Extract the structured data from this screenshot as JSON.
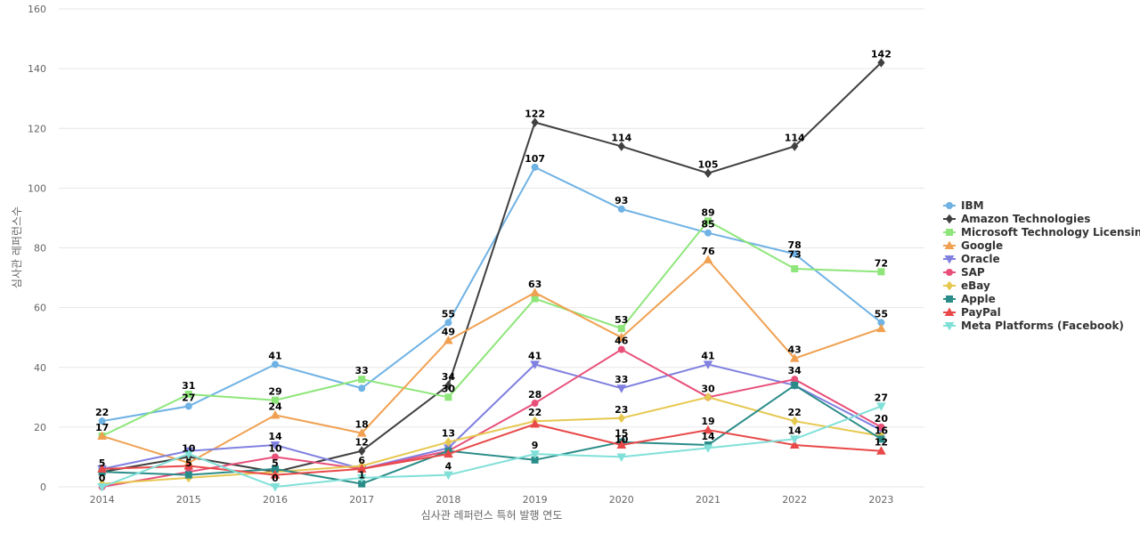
{
  "chart_data": {
    "type": "line",
    "title": "",
    "xlabel": "심사관 레퍼런스 특허 발행 연도",
    "ylabel": "심사관 레퍼런스수",
    "ylim": [
      0,
      160
    ],
    "yticks": [
      0,
      20,
      40,
      60,
      80,
      100,
      120,
      140,
      160
    ],
    "grid": true,
    "legend_position": "right",
    "data_labels": true,
    "categories": [
      "2014",
      "2015",
      "2016",
      "2017",
      "2018",
      "2019",
      "2020",
      "2021",
      "2022",
      "2023"
    ],
    "series": [
      {
        "name": "IBM",
        "color": "#6fb2e4",
        "marker": "circle",
        "values": [
          22,
          27,
          41,
          33,
          55,
          107,
          93,
          85,
          78,
          55
        ]
      },
      {
        "name": "Amazon Technologies",
        "color": "#404040",
        "marker": "diamond",
        "values": [
          5,
          10,
          5,
          12,
          34,
          122,
          114,
          105,
          114,
          142
        ]
      },
      {
        "name": "Microsoft Technology Licensing",
        "color": "#8ee67a",
        "marker": "square",
        "values": [
          17,
          31,
          29,
          36,
          30,
          63,
          53,
          89,
          73,
          72
        ]
      },
      {
        "name": "Google",
        "color": "#f0a050",
        "marker": "triangle",
        "values": [
          17,
          8,
          24,
          18,
          49,
          65,
          50,
          76,
          43,
          53
        ]
      },
      {
        "name": "Oracle",
        "color": "#8080e0",
        "marker": "triangle-down",
        "values": [
          6,
          12,
          14,
          6,
          13,
          41,
          33,
          41,
          34,
          19
        ]
      },
      {
        "name": "SAP",
        "color": "#e8507a",
        "marker": "circle",
        "values": [
          0,
          5,
          10,
          6,
          12,
          28,
          46,
          30,
          36,
          20
        ]
      },
      {
        "name": "eBay",
        "color": "#e6c850",
        "marker": "diamond",
        "values": [
          1,
          3,
          5,
          7,
          15,
          22,
          23,
          30,
          22,
          17
        ]
      },
      {
        "name": "Apple",
        "color": "#2a8c88",
        "marker": "square",
        "values": [
          5,
          4,
          6,
          1,
          12,
          9,
          15,
          14,
          34,
          16
        ]
      },
      {
        "name": "PayPal",
        "color": "#e84848",
        "marker": "triangle",
        "values": [
          6,
          7,
          4,
          6,
          11,
          21,
          14,
          19,
          14,
          12
        ]
      },
      {
        "name": "Meta Platforms (Facebook)",
        "color": "#80e0d8",
        "marker": "triangle-down",
        "values": [
          0,
          11,
          0,
          3,
          4,
          11,
          10,
          13,
          16,
          27
        ]
      }
    ],
    "labels": [
      {
        "text": "22",
        "x": "2014",
        "y": 22
      },
      {
        "text": "17",
        "x": "2014",
        "y": 17
      },
      {
        "text": "5",
        "x": "2014",
        "y": 5
      },
      {
        "text": "0",
        "x": "2014",
        "y": 0
      },
      {
        "text": "31",
        "x": "2015",
        "y": 31
      },
      {
        "text": "27",
        "x": "2015",
        "y": 27
      },
      {
        "text": "10",
        "x": "2015",
        "y": 10
      },
      {
        "text": "5",
        "x": "2015",
        "y": 5
      },
      {
        "text": "41",
        "x": "2016",
        "y": 41
      },
      {
        "text": "29",
        "x": "2016",
        "y": 29
      },
      {
        "text": "24",
        "x": "2016",
        "y": 24
      },
      {
        "text": "14",
        "x": "2016",
        "y": 14
      },
      {
        "text": "10",
        "x": "2016",
        "y": 10
      },
      {
        "text": "5",
        "x": "2016",
        "y": 5
      },
      {
        "text": "0",
        "x": "2016",
        "y": 0
      },
      {
        "text": "33",
        "x": "2017",
        "y": 36
      },
      {
        "text": "18",
        "x": "2017",
        "y": 18
      },
      {
        "text": "12",
        "x": "2017",
        "y": 12
      },
      {
        "text": "6",
        "x": "2017",
        "y": 6
      },
      {
        "text": "1",
        "x": "2017",
        "y": 1
      },
      {
        "text": "55",
        "x": "2018",
        "y": 55
      },
      {
        "text": "49",
        "x": "2018",
        "y": 49
      },
      {
        "text": "34",
        "x": "2018",
        "y": 34
      },
      {
        "text": "30",
        "x": "2018",
        "y": 30
      },
      {
        "text": "13",
        "x": "2018",
        "y": 15
      },
      {
        "text": "4",
        "x": "2018",
        "y": 4
      },
      {
        "text": "122",
        "x": "2019",
        "y": 122
      },
      {
        "text": "107",
        "x": "2019",
        "y": 107
      },
      {
        "text": "63",
        "x": "2019",
        "y": 65
      },
      {
        "text": "41",
        "x": "2019",
        "y": 41
      },
      {
        "text": "28",
        "x": "2019",
        "y": 28
      },
      {
        "text": "22",
        "x": "2019",
        "y": 22
      },
      {
        "text": "9",
        "x": "2019",
        "y": 11
      },
      {
        "text": "114",
        "x": "2020",
        "y": 114
      },
      {
        "text": "93",
        "x": "2020",
        "y": 93
      },
      {
        "text": "53",
        "x": "2020",
        "y": 53
      },
      {
        "text": "46",
        "x": "2020",
        "y": 46
      },
      {
        "text": "33",
        "x": "2020",
        "y": 33
      },
      {
        "text": "23",
        "x": "2020",
        "y": 23
      },
      {
        "text": "15",
        "x": "2020",
        "y": 15
      },
      {
        "text": "10",
        "x": "2020",
        "y": 13
      },
      {
        "text": "105",
        "x": "2021",
        "y": 105
      },
      {
        "text": "89",
        "x": "2021",
        "y": 89
      },
      {
        "text": "85",
        "x": "2021",
        "y": 85
      },
      {
        "text": "76",
        "x": "2021",
        "y": 76
      },
      {
        "text": "41",
        "x": "2021",
        "y": 41
      },
      {
        "text": "30",
        "x": "2021",
        "y": 30
      },
      {
        "text": "19",
        "x": "2021",
        "y": 19
      },
      {
        "text": "14",
        "x": "2021",
        "y": 14
      },
      {
        "text": "114",
        "x": "2022",
        "y": 114
      },
      {
        "text": "78",
        "x": "2022",
        "y": 78
      },
      {
        "text": "73",
        "x": "2022",
        "y": 75
      },
      {
        "text": "43",
        "x": "2022",
        "y": 43
      },
      {
        "text": "34",
        "x": "2022",
        "y": 36
      },
      {
        "text": "22",
        "x": "2022",
        "y": 22
      },
      {
        "text": "14",
        "x": "2022",
        "y": 16
      },
      {
        "text": "142",
        "x": "2023",
        "y": 142
      },
      {
        "text": "72",
        "x": "2023",
        "y": 72
      },
      {
        "text": "55",
        "x": "2023",
        "y": 55
      },
      {
        "text": "27",
        "x": "2023",
        "y": 27
      },
      {
        "text": "20",
        "x": "2023",
        "y": 20
      },
      {
        "text": "16",
        "x": "2023",
        "y": 16
      },
      {
        "text": "12",
        "x": "2023",
        "y": 12
      }
    ]
  }
}
